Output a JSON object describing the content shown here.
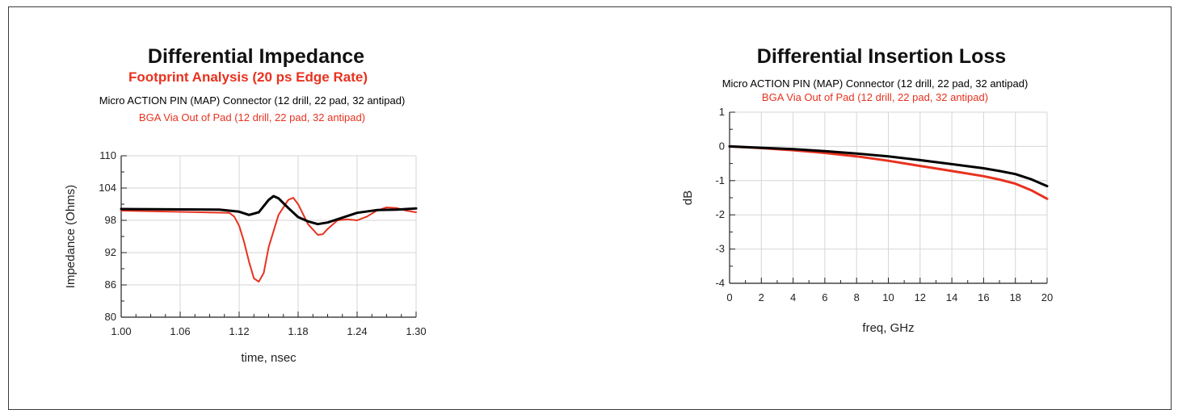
{
  "chart_data": [
    {
      "type": "line",
      "title": "Differential Impedance",
      "subtitle": "Footprint Analysis (20 ps Edge Rate)",
      "xlabel": "time, nsec",
      "ylabel": "Impedance (Ohms)",
      "xlim": [
        1.0,
        1.3
      ],
      "ylim": [
        80,
        110
      ],
      "xticks": [
        "1.00",
        "1.06",
        "1.12",
        "1.18",
        "1.24",
        "1.30"
      ],
      "yticks": [
        "80",
        "86",
        "92",
        "98",
        "104",
        "110"
      ],
      "grid": true,
      "legend_position": "top-center",
      "series": [
        {
          "name": "Micro ACTION PIN (MAP) Connector (12 drill, 22 pad, 32 antipad)",
          "color": "#000000",
          "x": [
            1.0,
            1.1,
            1.12,
            1.13,
            1.14,
            1.15,
            1.155,
            1.16,
            1.17,
            1.18,
            1.19,
            1.2,
            1.21,
            1.22,
            1.24,
            1.26,
            1.28,
            1.3
          ],
          "y": [
            100.1,
            100.0,
            99.6,
            99.0,
            99.5,
            101.8,
            102.5,
            102.1,
            100.3,
            98.6,
            97.8,
            97.3,
            97.6,
            98.2,
            99.4,
            99.9,
            100.0,
            100.2
          ]
        },
        {
          "name": "BGA Via Out of Pad (12 drill, 22 pad, 32 antipad)",
          "color": "#e8321f",
          "x": [
            1.0,
            1.11,
            1.115,
            1.12,
            1.125,
            1.13,
            1.135,
            1.14,
            1.145,
            1.15,
            1.16,
            1.17,
            1.175,
            1.18,
            1.19,
            1.2,
            1.205,
            1.21,
            1.22,
            1.23,
            1.24,
            1.25,
            1.26,
            1.27,
            1.28,
            1.29,
            1.3
          ],
          "y": [
            99.8,
            99.4,
            98.7,
            97.0,
            94.0,
            90.3,
            87.2,
            86.6,
            88.2,
            93.0,
            99.0,
            101.8,
            102.2,
            101.0,
            97.3,
            95.3,
            95.4,
            96.4,
            98.0,
            98.2,
            98.0,
            98.7,
            99.8,
            100.4,
            100.3,
            99.8,
            99.5
          ]
        }
      ]
    },
    {
      "type": "line",
      "title": "Differential Insertion Loss",
      "xlabel": "freq, GHz",
      "ylabel": "dB",
      "xlim": [
        0,
        20
      ],
      "ylim": [
        -4,
        1
      ],
      "xticks": [
        "0",
        "2",
        "4",
        "6",
        "8",
        "10",
        "12",
        "14",
        "16",
        "18",
        "20"
      ],
      "yticks": [
        "-4",
        "-3",
        "-2",
        "-1",
        "0",
        "1"
      ],
      "grid": true,
      "legend_position": "top-center",
      "series": [
        {
          "name": "Micro ACTION PIN (MAP) Connector (12 drill, 22 pad, 32 antipad)",
          "color": "#000000",
          "x": [
            0,
            2,
            4,
            6,
            8,
            10,
            12,
            14,
            16,
            17,
            18,
            19,
            20
          ],
          "y": [
            0.0,
            -0.04,
            -0.08,
            -0.14,
            -0.21,
            -0.29,
            -0.4,
            -0.52,
            -0.64,
            -0.72,
            -0.81,
            -0.96,
            -1.16
          ]
        },
        {
          "name": "BGA Via Out of Pad (12 drill, 22 pad, 32 antipad)",
          "color": "#e8321f",
          "x": [
            0,
            2,
            4,
            6,
            8,
            10,
            12,
            14,
            16,
            17,
            18,
            19,
            20
          ],
          "y": [
            0.0,
            -0.05,
            -0.11,
            -0.19,
            -0.29,
            -0.42,
            -0.57,
            -0.72,
            -0.87,
            -0.97,
            -1.09,
            -1.28,
            -1.53
          ]
        }
      ]
    }
  ]
}
